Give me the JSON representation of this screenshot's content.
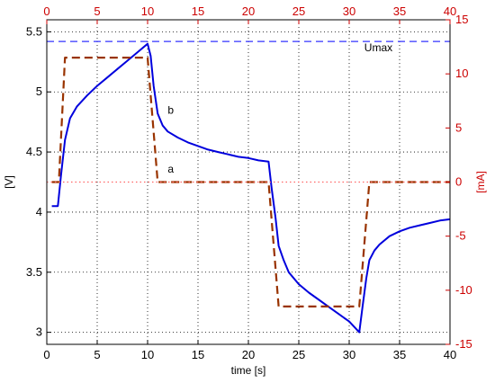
{
  "chart_data": {
    "type": "line",
    "x_bottom_label": "time [s]",
    "x_top_label": "",
    "ylabel_left": "[V]",
    "ylabel_right": "[mA]",
    "xlim": [
      0,
      40
    ],
    "x_ticks": [
      0,
      5,
      10,
      15,
      20,
      25,
      30,
      35,
      40
    ],
    "x_tick_labels": [
      "0",
      "5",
      "10",
      "15",
      "20",
      "25",
      "30",
      "35",
      "40"
    ],
    "ylim_left": [
      2.9,
      5.6
    ],
    "y_left_ticks": [
      3,
      3.5,
      4,
      4.5,
      5,
      5.5
    ],
    "y_left_tick_labels": [
      "3",
      "3.5",
      "4",
      "4.5",
      "5",
      "5.5"
    ],
    "ylim_right": [
      -15,
      15
    ],
    "y_right_ticks": [
      -15,
      -10,
      -5,
      0,
      5,
      10,
      15
    ],
    "y_right_tick_labels": [
      "-15",
      "-10",
      "-5",
      "0",
      "5",
      "10",
      "15"
    ],
    "grid": true,
    "annotations": [
      {
        "text": "Umax",
        "x": 31.5,
        "y_left": 5.34
      },
      {
        "text": "b",
        "x": 12.0,
        "y_left": 4.82
      },
      {
        "text": "a",
        "x": 12.0,
        "y_left": 4.33
      }
    ],
    "series": [
      {
        "name": "",
        "axis": "left",
        "color": "#0000dd",
        "style": "solid",
        "x": [
          0.5,
          1.1,
          1.4,
          1.8,
          2.3,
          3,
          4,
          5,
          6,
          7,
          8,
          9,
          10,
          10.3,
          10.6,
          11,
          11.5,
          12,
          13,
          14,
          15,
          16,
          17,
          18,
          19,
          20,
          21,
          22,
          22.3,
          22.7,
          23,
          23.5,
          24,
          25,
          26,
          27,
          28,
          29,
          30,
          31,
          31.3,
          31.7,
          32,
          32.5,
          33,
          34,
          35,
          36,
          37,
          38,
          39,
          40
        ],
        "y": [
          4.05,
          4.05,
          4.3,
          4.6,
          4.78,
          4.88,
          4.97,
          5.05,
          5.12,
          5.19,
          5.26,
          5.33,
          5.4,
          5.3,
          5.05,
          4.82,
          4.72,
          4.67,
          4.62,
          4.58,
          4.55,
          4.52,
          4.5,
          4.48,
          4.46,
          4.45,
          4.43,
          4.42,
          4.2,
          3.95,
          3.72,
          3.6,
          3.5,
          3.4,
          3.33,
          3.27,
          3.21,
          3.15,
          3.09,
          3.0,
          3.2,
          3.45,
          3.6,
          3.68,
          3.73,
          3.8,
          3.84,
          3.87,
          3.89,
          3.91,
          3.93,
          3.94
        ]
      },
      {
        "name": "",
        "axis": "right",
        "color": "#993300",
        "style": "dashed",
        "x": [
          0.5,
          1.2,
          1.8,
          10,
          11,
          22,
          23,
          31,
          32,
          40
        ],
        "y": [
          0,
          0,
          11.5,
          11.5,
          0,
          0,
          -11.5,
          -11.5,
          0,
          0
        ]
      },
      {
        "name": "",
        "axis": "left",
        "color": "#3333ff",
        "style": "dashed",
        "x": [
          0,
          40
        ],
        "y": [
          5.42,
          5.42
        ]
      },
      {
        "name": "",
        "axis": "right",
        "color": "#ff6666",
        "style": "dotted",
        "x": [
          0,
          40
        ],
        "y": [
          0,
          0
        ]
      }
    ]
  }
}
